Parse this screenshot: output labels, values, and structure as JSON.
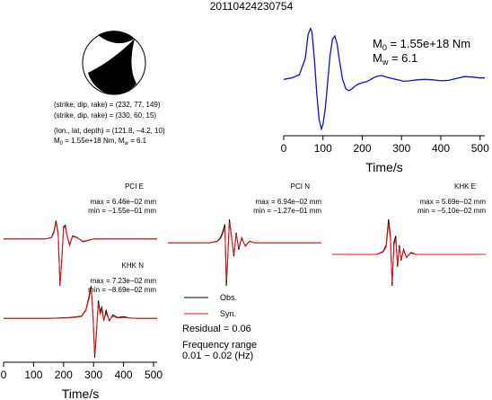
{
  "event_id": "20110424230754",
  "source_params": {
    "sdr1": "(strike, dip, rake) = (232, 77, 149)",
    "sdr2": "(strike, dip, rake) = (330, 60, 15)",
    "location": "(lon., lat, depth) = (121.8, −4.2, 10)",
    "m0_base": "M",
    "m0_sub": "0",
    "m0_rest": " = 1.55e+18 Nm, M",
    "mw_sub": "w",
    "mw_rest": " = 6.1"
  },
  "moment_rate_label": {
    "m0_base": "M",
    "m0_sub": "0",
    "m0_rest": " = 1.55e+18 Nm",
    "mw_base": "M",
    "mw_sub": "w",
    "mw_rest": " = 6.1"
  },
  "legend": {
    "obs": "Obs.",
    "syn": "Syn.",
    "residual": "Residual = 0.06",
    "freq_title": "Frequency range",
    "freq_value": "0.01 − 0.02 (Hz)"
  },
  "colors": {
    "observed": "#000000",
    "synthetic": "#e8171c",
    "moment_rate": "#1010d0"
  },
  "chart_data": [
    {
      "type": "line",
      "name": "moment-rate",
      "xlabel": "Time/s",
      "ylabel": "",
      "xlim": [
        0,
        512
      ],
      "ylim": [
        -1.1,
        1.15
      ],
      "xticks": [
        0,
        100,
        200,
        300,
        400,
        500
      ],
      "x": [
        0,
        20,
        40,
        55,
        62,
        68,
        72,
        78,
        84,
        90,
        96,
        100,
        106,
        112,
        118,
        124,
        130,
        136,
        142,
        150,
        158,
        166,
        174,
        182,
        190,
        200,
        210,
        220,
        230,
        240,
        250,
        262,
        275,
        290,
        305,
        320,
        340,
        360,
        380,
        400,
        420,
        440,
        460,
        480,
        500,
        512
      ],
      "y": [
        0,
        0.03,
        0.1,
        0.45,
        0.95,
        1.08,
        1.0,
        0.45,
        -0.3,
        -0.85,
        -1.05,
        -0.95,
        -0.6,
        -0.05,
        0.5,
        0.85,
        0.92,
        0.75,
        0.4,
        0.0,
        -0.2,
        -0.24,
        -0.2,
        -0.14,
        -0.1,
        -0.07,
        -0.05,
        -0.01,
        0.04,
        0.07,
        0.08,
        0.05,
        0.02,
        -0.01,
        -0.04,
        -0.03,
        -0.01,
        0.0,
        -0.01,
        -0.03,
        -0.02,
        0.02,
        0.06,
        0.05,
        0.03,
        0.03
      ]
    },
    {
      "type": "line",
      "name": "waveform-pci-e",
      "station": "PCI E",
      "max_text": "max = 6.46e−02 mm",
      "min_text": "min = −1.55e−01 mm",
      "xlim": [
        0,
        512
      ],
      "ylim": [
        -0.155,
        0.0646
      ],
      "series": [
        {
          "name": "Obs.",
          "x": [
            0,
            140,
            160,
            168,
            175,
            182,
            188,
            194,
            200,
            206,
            212,
            220,
            230,
            245,
            265,
            300,
            400,
            512
          ],
          "y": [
            0,
            0,
            0.005,
            0.025,
            0.06,
            0.02,
            -0.155,
            -0.07,
            0.04,
            0.045,
            0.01,
            -0.02,
            0.01,
            0.005,
            -0.01,
            0,
            0,
            0
          ]
        },
        {
          "name": "Syn.",
          "x": [
            0,
            140,
            160,
            168,
            175,
            182,
            188,
            194,
            200,
            206,
            212,
            220,
            230,
            245,
            265,
            300,
            400,
            512
          ],
          "y": [
            0,
            0,
            0.004,
            0.02,
            0.055,
            0.015,
            -0.15,
            -0.075,
            0.035,
            0.04,
            0.008,
            -0.022,
            0.008,
            0.004,
            -0.008,
            0,
            0,
            0
          ]
        }
      ]
    },
    {
      "type": "line",
      "name": "waveform-pci-n",
      "station": "PCI N",
      "max_text": "max = 6.94e−02 mm",
      "min_text": "min = −1.27e−01 mm",
      "xlim": [
        0,
        512
      ],
      "ylim": [
        -0.127,
        0.0694
      ],
      "series": [
        {
          "name": "Obs.",
          "x": [
            0,
            140,
            165,
            175,
            182,
            190,
            195,
            200,
            205,
            212,
            220,
            228,
            236,
            246,
            258,
            272,
            290,
            320,
            512
          ],
          "y": [
            0,
            0,
            0.005,
            0.015,
            0.03,
            0.055,
            -0.127,
            -0.04,
            0.069,
            0.02,
            -0.04,
            0.03,
            -0.02,
            0.015,
            -0.01,
            0.005,
            0,
            0,
            0
          ]
        },
        {
          "name": "Syn.",
          "x": [
            0,
            140,
            165,
            175,
            182,
            190,
            195,
            200,
            205,
            212,
            220,
            228,
            236,
            246,
            258,
            272,
            290,
            320,
            512
          ],
          "y": [
            0,
            0,
            0.004,
            0.012,
            0.025,
            0.045,
            -0.11,
            -0.035,
            0.06,
            0.018,
            -0.035,
            0.025,
            -0.015,
            0.012,
            -0.008,
            0.004,
            0,
            0,
            0
          ]
        }
      ]
    },
    {
      "type": "line",
      "name": "waveform-khk-e",
      "station": "KHK E",
      "max_text": "max = 5.69e−02 mm",
      "min_text": "min = −5.10e−02 mm",
      "xlim": [
        0,
        512
      ],
      "ylim": [
        -0.051,
        0.0569
      ],
      "series": [
        {
          "name": "Obs.",
          "x": [
            0,
            150,
            170,
            180,
            188,
            194,
            200,
            206,
            212,
            218,
            224,
            230,
            238,
            248,
            262,
            280,
            300,
            512
          ],
          "y": [
            0,
            0,
            0.005,
            0.015,
            0.0569,
            0.03,
            -0.051,
            0.02,
            0.03,
            -0.02,
            0.015,
            -0.01,
            0.008,
            -0.005,
            0.003,
            0,
            0,
            0
          ]
        },
        {
          "name": "Syn.",
          "x": [
            0,
            150,
            170,
            180,
            188,
            194,
            200,
            206,
            212,
            218,
            224,
            230,
            238,
            248,
            262,
            280,
            300,
            512
          ],
          "y": [
            0,
            0,
            0.004,
            0.012,
            0.05,
            0.025,
            -0.045,
            0.015,
            0.025,
            -0.015,
            0.012,
            -0.008,
            0.006,
            -0.004,
            0.002,
            0,
            0,
            0
          ]
        }
      ]
    },
    {
      "type": "line",
      "name": "waveform-khk-n",
      "station": "KHK N",
      "max_text": "max = 7.23e−02 mm",
      "min_text": "min = −8.69e−02 mm",
      "xlabel": "Time/s",
      "xlim": [
        0,
        512
      ],
      "ylim": [
        -0.0869,
        0.0723
      ],
      "xticks": [
        0,
        100,
        200,
        300,
        400,
        500
      ],
      "series": [
        {
          "name": "Obs.",
          "x": [
            0,
            150,
            220,
            260,
            275,
            285,
            292,
            298,
            304,
            310,
            316,
            322,
            328,
            334,
            342,
            352,
            365,
            380,
            400,
            420,
            450,
            512
          ],
          "y": [
            0,
            0,
            0.002,
            0.005,
            0.02,
            0.05,
            0.0723,
            0.01,
            -0.0869,
            -0.03,
            0.04,
            0.015,
            0.025,
            -0.005,
            0.018,
            -0.005,
            0.008,
            0.002,
            0.004,
            0.001,
            0,
            0
          ]
        },
        {
          "name": "Syn.",
          "x": [
            0,
            150,
            220,
            260,
            275,
            285,
            292,
            298,
            304,
            310,
            316,
            322,
            328,
            334,
            342,
            352,
            365,
            380,
            400,
            420,
            450,
            512
          ],
          "y": [
            0,
            0,
            0.0015,
            0.004,
            0.018,
            0.045,
            0.066,
            0.008,
            -0.08,
            -0.025,
            0.033,
            0.01,
            0.018,
            -0.003,
            0.012,
            -0.003,
            0.005,
            0.001,
            0.002,
            0.001,
            0,
            0
          ]
        }
      ]
    }
  ]
}
